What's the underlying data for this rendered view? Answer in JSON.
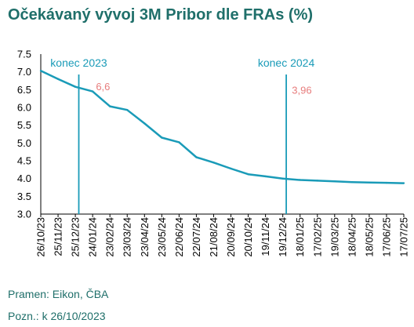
{
  "header": {
    "title": "Očekávaný vývoj 3M Pribor dle FRAs (%)"
  },
  "footer": {
    "source": "Pramen: Eikon, ČBA",
    "note": "Pozn.: k 26/10/2023"
  },
  "chart_data": {
    "type": "line",
    "title": "Očekávaný vývoj 3M Pribor dle FRAs (%)",
    "xlabel": "",
    "ylabel": "",
    "ylim": [
      3.0,
      7.5
    ],
    "yticks": [
      "3.0",
      "3.5",
      "4.0",
      "4.5",
      "5.0",
      "5.5",
      "6.0",
      "6.5",
      "7.0",
      "7.5"
    ],
    "categories": [
      "26/10/23",
      "25/11/23",
      "25/12/23",
      "24/01/24",
      "23/02/24",
      "23/03/24",
      "23/04/24",
      "23/05/24",
      "22/06/24",
      "22/07/24",
      "21/08/24",
      "20/09/24",
      "20/10/24",
      "19/11/24",
      "19/12/24",
      "18/01/25",
      "17/02/25",
      "19/03/25",
      "18/04/25",
      "18/05/25",
      "17/06/25",
      "17/07/25"
    ],
    "series": [
      {
        "values": [
          7.03,
          6.8,
          6.58,
          6.45,
          6.03,
          5.93,
          5.55,
          5.15,
          5.02,
          4.6,
          4.45,
          4.28,
          4.12,
          4.06,
          4.0,
          3.96,
          3.94,
          3.92,
          3.9,
          3.89,
          3.88,
          3.87
        ],
        "color": "#1a9bb8"
      }
    ],
    "markers": [
      {
        "label": "konec 2023",
        "x_index": 2.2
      },
      {
        "label": "konec 2024",
        "x_index": 14.2
      }
    ],
    "data_labels": [
      {
        "text": "6,6",
        "x_index": 3.6,
        "y": 6.6
      },
      {
        "text": "3,96",
        "x_index": 15.1,
        "y": 3.96
      }
    ],
    "colors": {
      "line": "#1a9bb8",
      "marker": "#1a9bb8",
      "label": "#e77c7c",
      "title": "#1f6f6a",
      "axis": "#000000"
    }
  }
}
